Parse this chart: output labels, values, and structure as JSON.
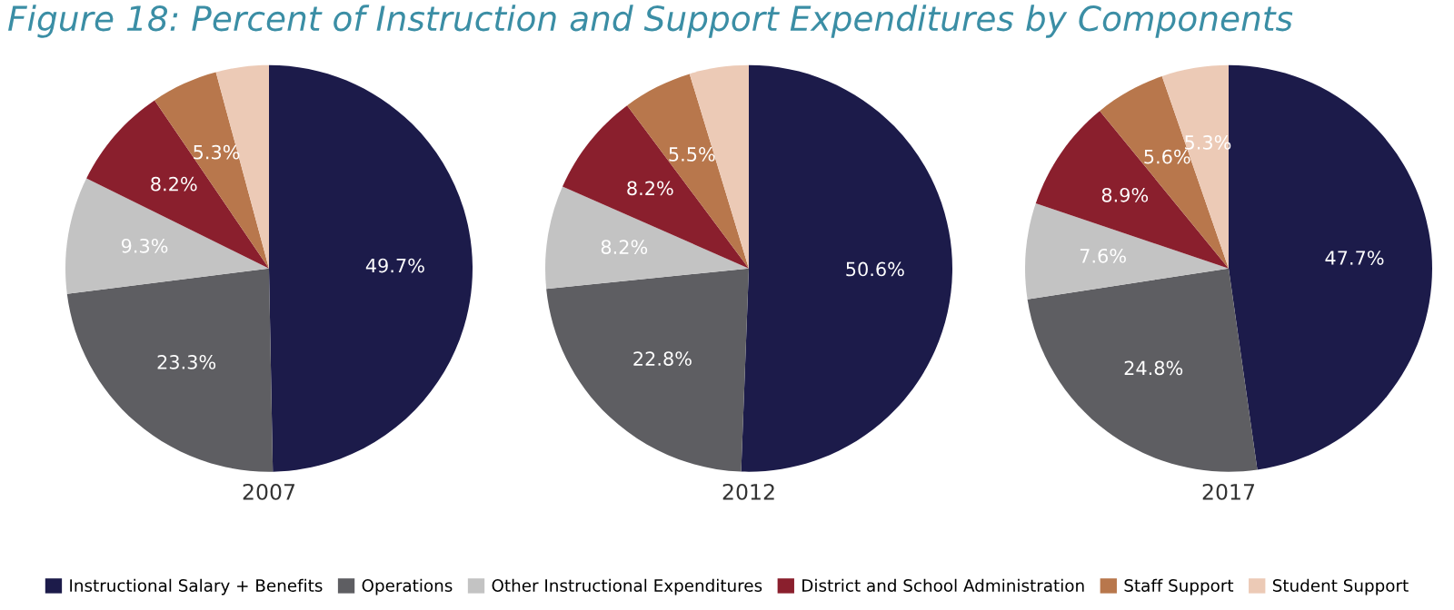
{
  "chart_data": [
    {
      "type": "pie",
      "title": "Figure 18: Percent of Instruction and Support Expenditures by Components",
      "xlabel": "2007",
      "categories": [
        "Instructional Salary + Benefits",
        "Operations",
        "Other Instructional Expenditures",
        "District and School Administration",
        "Staff Support",
        "Student Support"
      ],
      "values": [
        49.7,
        23.3,
        9.3,
        8.2,
        5.3,
        4.2
      ],
      "value_labels": [
        "49.7%",
        "23.3%",
        "9.3%",
        "8.2%",
        "5.3%",
        null
      ],
      "colors": [
        "#1c1b4a",
        "#5e5e62",
        "#c3c3c3",
        "#8a1f2d",
        "#b8774c",
        "#eccab6"
      ],
      "legend": "bottom"
    },
    {
      "type": "pie",
      "xlabel": "2012",
      "values": [
        50.6,
        22.8,
        8.2,
        8.2,
        5.5,
        4.7
      ],
      "value_labels": [
        "50.6%",
        "22.8%",
        "8.2%",
        "8.2%",
        "5.5%",
        null
      ],
      "colors": [
        "#1c1b4a",
        "#5e5e62",
        "#c3c3c3",
        "#8a1f2d",
        "#b8774c",
        "#eccab6"
      ]
    },
    {
      "type": "pie",
      "xlabel": "2017",
      "values": [
        47.7,
        24.8,
        7.6,
        8.9,
        5.6,
        5.3
      ],
      "value_labels": [
        "47.7%",
        "24.8%",
        "7.6%",
        "8.9%",
        "5.6%",
        "5.3%"
      ],
      "colors": [
        "#1c1b4a",
        "#5e5e62",
        "#c3c3c3",
        "#8a1f2d",
        "#b8774c",
        "#eccab6"
      ]
    }
  ]
}
